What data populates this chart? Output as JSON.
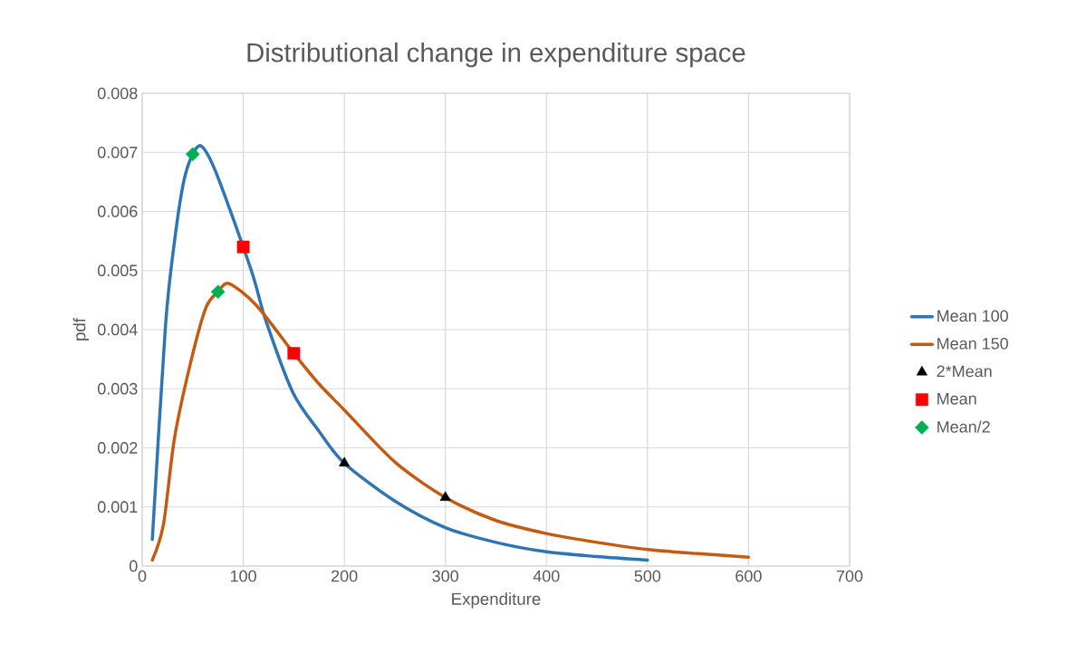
{
  "chart_data": {
    "type": "line",
    "title": "Distributional change in expenditure space",
    "xlabel": "Expenditure",
    "ylabel": "pdf",
    "xlim": [
      0,
      700
    ],
    "xticks": [
      0,
      100,
      200,
      300,
      400,
      500,
      600,
      700
    ],
    "ylim": [
      0,
      0.008
    ],
    "yticks": [
      0,
      0.001,
      0.002,
      0.003,
      0.004,
      0.005,
      0.006,
      0.007,
      0.008
    ],
    "grid": true,
    "legend": "right",
    "series": [
      {
        "name": "Mean 100",
        "color": "#2e75b6",
        "marker": "none",
        "x": [
          10,
          23,
          32,
          41,
          50,
          59,
          74,
          108,
          122,
          149,
          175,
          200,
          250,
          300,
          350,
          400,
          450,
          500
        ],
        "values": [
          0.00045,
          0.00406,
          0.0055,
          0.0065,
          0.00697,
          0.0071,
          0.00662,
          0.005,
          0.00417,
          0.00294,
          0.00228,
          0.00174,
          0.0011,
          0.00065,
          0.0004,
          0.00024,
          0.00016,
          0.0001
        ]
      },
      {
        "name": "Mean 150",
        "color": "#c55a11",
        "marker": "none",
        "x": [
          10,
          21,
          32,
          48,
          63,
          75,
          86,
          113,
          150,
          175,
          200,
          250,
          300,
          350,
          400,
          450,
          500,
          550,
          600
        ],
        "values": [
          0.0001,
          0.0007,
          0.00217,
          0.00345,
          0.00437,
          0.00464,
          0.00478,
          0.00441,
          0.0036,
          0.00308,
          0.00264,
          0.00176,
          0.00116,
          0.00077,
          0.00055,
          0.0004,
          0.00028,
          0.00021,
          0.00015
        ]
      },
      {
        "name": "2*Mean",
        "type": "scatter",
        "color": "#000000",
        "marker": "triangle",
        "x": [
          200,
          300
        ],
        "values": [
          0.00174,
          0.00116
        ]
      },
      {
        "name": "Mean",
        "type": "scatter",
        "color": "#ff0000",
        "marker": "square",
        "x": [
          100,
          150
        ],
        "values": [
          0.0054,
          0.0036
        ]
      },
      {
        "name": "Mean/2",
        "type": "scatter",
        "color": "#00b050",
        "marker": "diamond",
        "x": [
          50,
          75
        ],
        "values": [
          0.00697,
          0.00464
        ]
      }
    ]
  }
}
